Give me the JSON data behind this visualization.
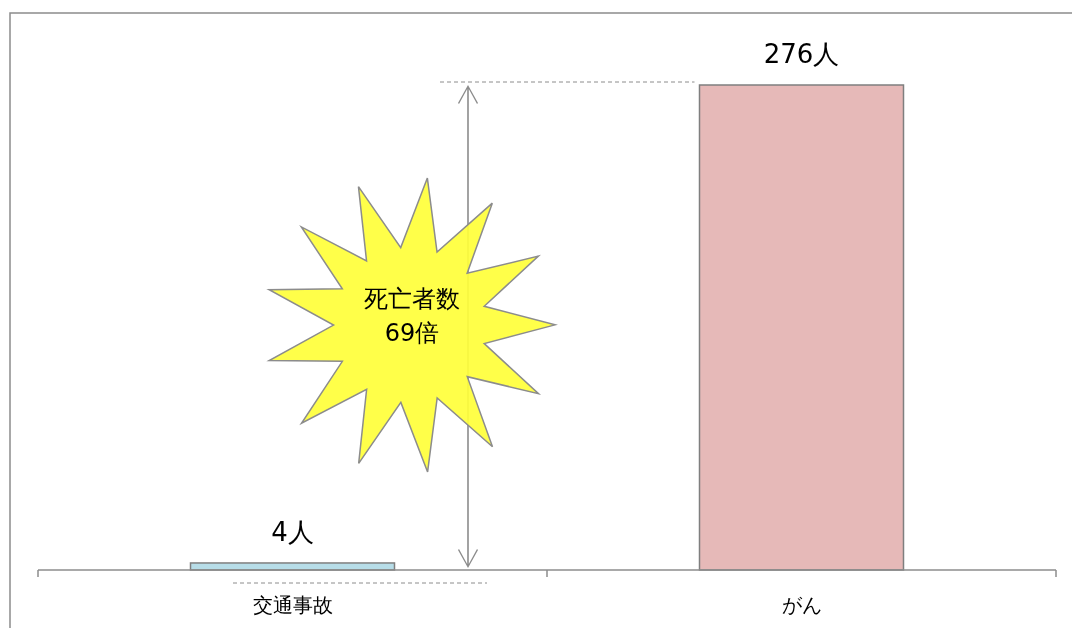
{
  "chart_data": {
    "type": "bar",
    "categories": [
      "交通事故",
      "がん"
    ],
    "values": [
      4,
      276
    ],
    "colors": [
      "#b7dde8",
      "#e6b9b8"
    ],
    "value_labels": [
      "4人",
      "276人"
    ],
    "annotations": [
      "死亡者数\n69倍"
    ]
  }
}
